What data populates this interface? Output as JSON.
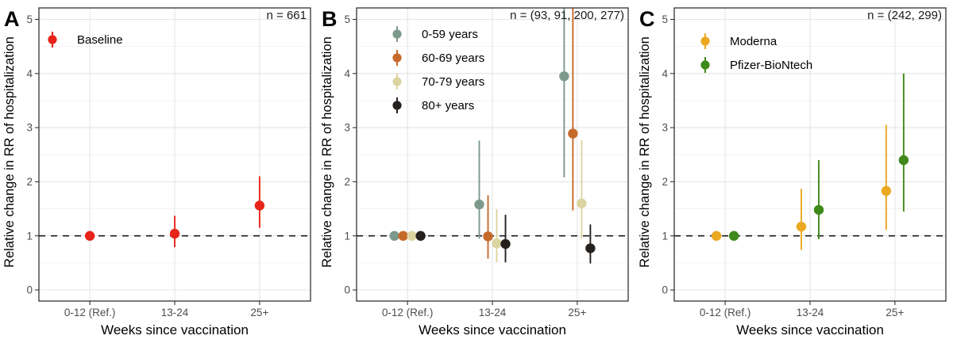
{
  "figure": {
    "x_axis_label": "Weeks since vaccination",
    "y_axis_label": "Relative change in RR of hospitalization",
    "x_categories": [
      "0-12 (Ref.)",
      "13-24",
      "25+"
    ],
    "y_ticks": [
      0,
      1,
      2,
      3,
      4,
      5
    ],
    "ylim": [
      -0.2,
      5.2
    ],
    "reference_line_y": 1,
    "legend_position": "inside top-left of each panel"
  },
  "theme": {
    "background": "#ffffff",
    "major_grid_color": "#e4e4e4",
    "minor_grid_color": "#f1f1f1",
    "panel_border_color": "#333333",
    "axis_tick_color": "#333333",
    "tick_label_color": "#4d4d4d",
    "axis_title_color": "#000000",
    "reference_line_color": "#1a1a1a",
    "panel_letter_color": "#000000"
  },
  "chart_data": [
    {
      "type": "scatter",
      "style": "pointrange (dot with vertical CI whisker)",
      "panel_label": "A",
      "n_label": "n = 661",
      "categories": [
        "0-12 (Ref.)",
        "13-24",
        "25+"
      ],
      "series": [
        {
          "name": "Baseline",
          "color": "#e8231a",
          "est": [
            1.0,
            1.04,
            1.56
          ],
          "lo": [
            1.0,
            0.79,
            1.15
          ],
          "hi": [
            1.0,
            1.37,
            2.1
          ]
        }
      ]
    },
    {
      "type": "scatter",
      "style": "pointrange (dot with vertical CI whisker)",
      "panel_label": "B",
      "n_label": "n = (93, 91, 200, 277)",
      "categories": [
        "0-12 (Ref.)",
        "13-24",
        "25+"
      ],
      "series": [
        {
          "name": "0-59 years",
          "color": "#7d998c",
          "est": [
            1.0,
            1.58,
            3.95
          ],
          "lo": [
            1.0,
            0.95,
            2.08
          ],
          "hi": [
            1.0,
            2.76,
            5.6
          ],
          "hi_offscreen": [
            false,
            false,
            true
          ]
        },
        {
          "name": "60-69 years",
          "color": "#c66a2b",
          "est": [
            1.0,
            0.99,
            2.89
          ],
          "lo": [
            1.0,
            0.58,
            1.47
          ],
          "hi": [
            1.0,
            1.75,
            5.6
          ],
          "hi_offscreen": [
            false,
            false,
            true
          ]
        },
        {
          "name": "70-79 years",
          "color": "#dcd5a2",
          "est": [
            1.0,
            0.86,
            1.6
          ],
          "lo": [
            1.0,
            0.51,
            0.95
          ],
          "hi": [
            1.0,
            1.49,
            2.77
          ],
          "hi_offscreen": [
            false,
            false,
            false
          ]
        },
        {
          "name": "80+ years",
          "color": "#26211f",
          "est": [
            1.0,
            0.85,
            0.77
          ],
          "lo": [
            1.0,
            0.51,
            0.49
          ],
          "hi": [
            1.0,
            1.39,
            1.21
          ],
          "hi_offscreen": [
            false,
            false,
            false
          ]
        }
      ]
    },
    {
      "type": "scatter",
      "style": "pointrange (dot with vertical CI whisker)",
      "panel_label": "C",
      "n_label": "n = (242, 299)",
      "categories": [
        "0-12 (Ref.)",
        "13-24",
        "25+"
      ],
      "series": [
        {
          "name": "Moderna",
          "color": "#eba820",
          "est": [
            1.0,
            1.17,
            1.83
          ],
          "lo": [
            1.0,
            0.74,
            1.11
          ],
          "hi": [
            1.0,
            1.87,
            3.05
          ]
        },
        {
          "name": "Pfizer-BioNtech",
          "color": "#3f8a1a",
          "est": [
            1.0,
            1.48,
            2.4
          ],
          "lo": [
            1.0,
            0.94,
            1.45
          ],
          "hi": [
            1.0,
            2.4,
            4.0
          ]
        }
      ]
    }
  ]
}
